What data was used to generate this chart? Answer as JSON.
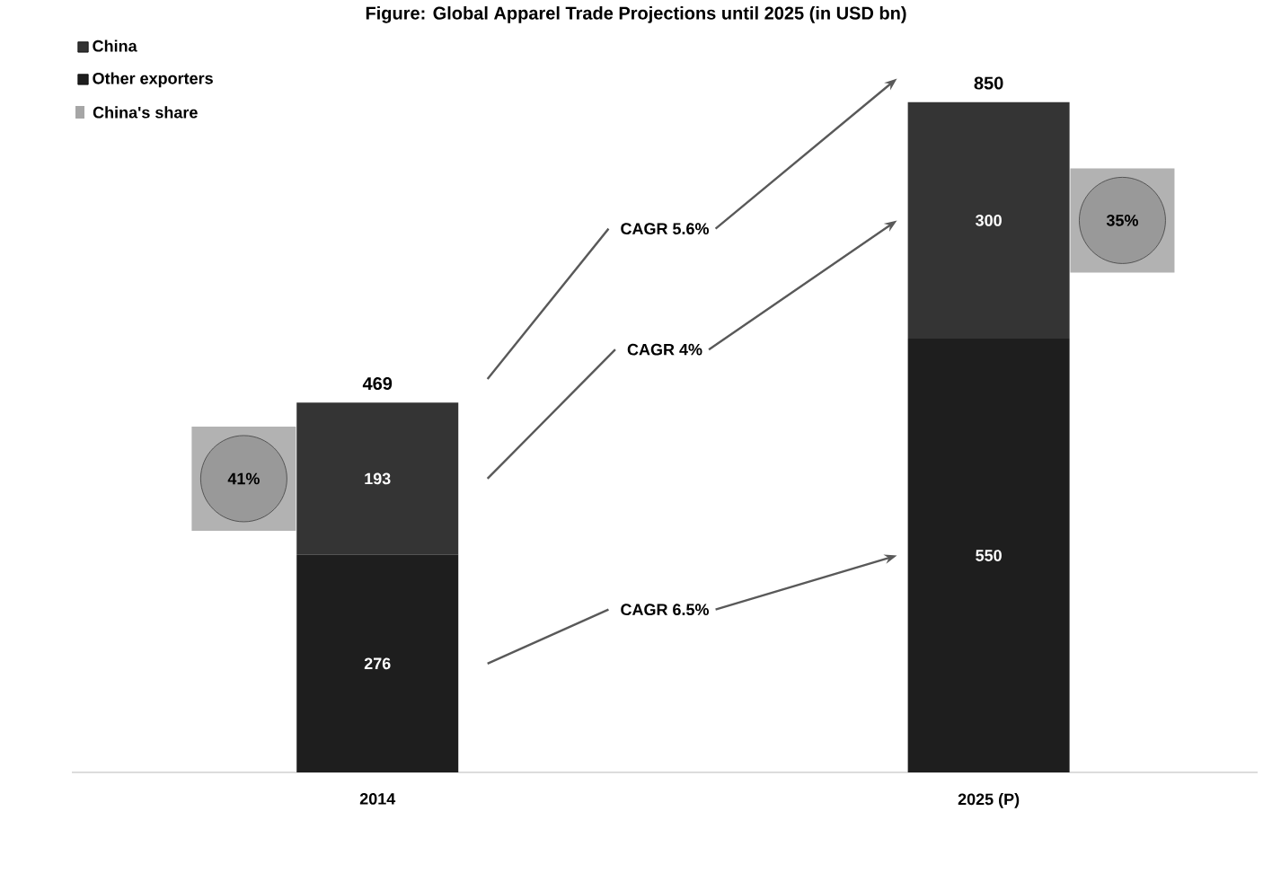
{
  "chart_data": {
    "type": "bar",
    "stacked": true,
    "title": "Figure: Global Apparel Trade Projections until 2025 (in USD bn)",
    "categories": [
      "2014",
      "2025 (P)"
    ],
    "series": [
      {
        "name": "Other exporters",
        "color": "#1e1e1e",
        "values": [
          276,
          550
        ]
      },
      {
        "name": "China",
        "color": "#343434",
        "values": [
          193,
          300
        ]
      }
    ],
    "data_labels": true,
    "totals": [
      "469",
      "850"
    ],
    "legend": "top left",
    "annotations": [
      "China's share",
      "CAGR 5.6%",
      "CAGR 4%",
      "CAGR 6.5%",
      "41%",
      "35%"
    ]
  }
}
